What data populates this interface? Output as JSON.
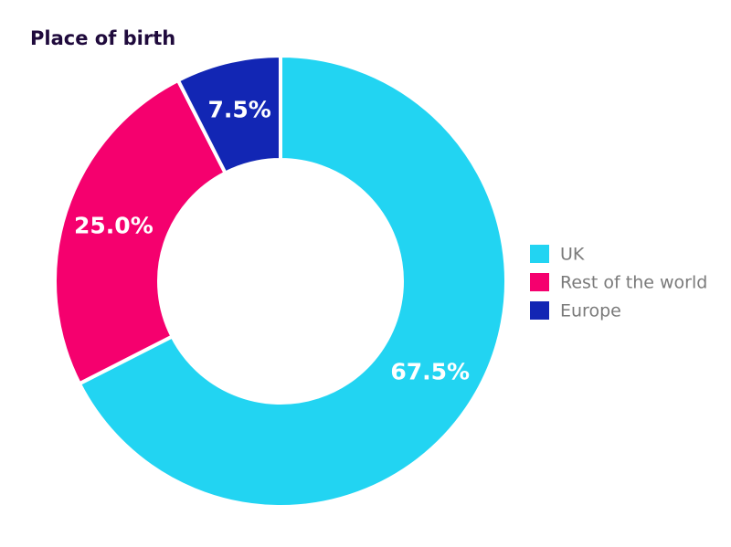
{
  "chart_data": {
    "type": "pie",
    "title": "Place of birth",
    "categories": [
      "UK",
      "Rest of the world",
      "Europe"
    ],
    "values": [
      67.5,
      25.0,
      7.5
    ],
    "value_labels": [
      "67.5%",
      "25.0%",
      "7.5%"
    ],
    "colors": [
      "#22d4f2",
      "#f5006e",
      "#1226b4"
    ],
    "legend": "right"
  }
}
